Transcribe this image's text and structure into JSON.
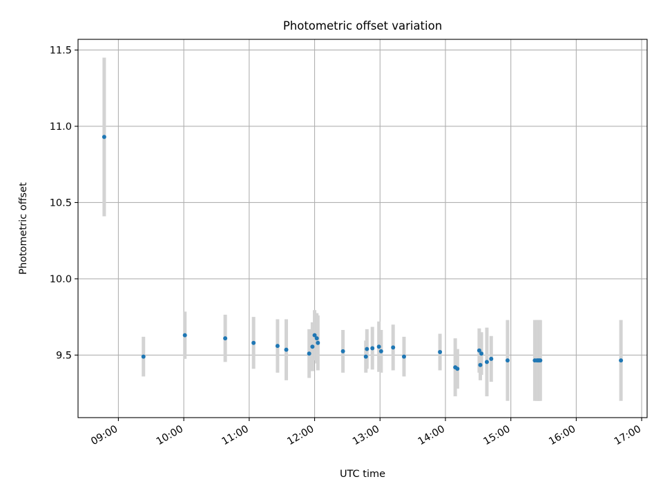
{
  "chart_data": {
    "type": "scatter",
    "title": "Photometric offset variation",
    "xlabel": "UTC time",
    "ylabel": "Photometric offset",
    "x_ticks": [
      "09:00",
      "10:00",
      "11:00",
      "12:00",
      "13:00",
      "14:00",
      "15:00",
      "16:00",
      "17:00"
    ],
    "x_tick_values": [
      540,
      600,
      660,
      720,
      780,
      840,
      900,
      960,
      1020
    ],
    "y_ticks": [
      "9.5",
      "10.0",
      "10.5",
      "11.0",
      "11.5"
    ],
    "y_tick_values": [
      9.5,
      10.0,
      10.5,
      11.0,
      11.5
    ],
    "xlim": [
      503,
      1025
    ],
    "ylim": [
      9.09,
      11.57
    ],
    "grid": true,
    "marker_color": "#1f77b4",
    "errorbar_color": "#d3d3d3",
    "points": [
      {
        "t": "08:47",
        "y": 10.93,
        "err": 0.52
      },
      {
        "t": "09:23",
        "y": 9.49,
        "err": 0.13
      },
      {
        "t": "10:01",
        "y": 9.63,
        "err": 0.155
      },
      {
        "t": "10:38",
        "y": 9.61,
        "err": 0.155
      },
      {
        "t": "11:04",
        "y": 9.58,
        "err": 0.17
      },
      {
        "t": "11:26",
        "y": 9.56,
        "err": 0.175
      },
      {
        "t": "11:34",
        "y": 9.535,
        "err": 0.2
      },
      {
        "t": "11:55",
        "y": 9.51,
        "err": 0.16
      },
      {
        "t": "11:58",
        "y": 9.555,
        "err": 0.16
      },
      {
        "t": "12:00",
        "y": 9.63,
        "err": 0.165
      },
      {
        "t": "12:02",
        "y": 9.61,
        "err": 0.165
      },
      {
        "t": "12:03",
        "y": 9.58,
        "err": 0.18
      },
      {
        "t": "12:26",
        "y": 9.525,
        "err": 0.14
      },
      {
        "t": "12:47",
        "y": 9.49,
        "err": 0.105
      },
      {
        "t": "12:48",
        "y": 9.54,
        "err": 0.13
      },
      {
        "t": "12:53",
        "y": 9.545,
        "err": 0.14
      },
      {
        "t": "12:59",
        "y": 9.555,
        "err": 0.165
      },
      {
        "t": "13:01",
        "y": 9.525,
        "err": 0.14
      },
      {
        "t": "13:12",
        "y": 9.55,
        "err": 0.15
      },
      {
        "t": "13:22",
        "y": 9.49,
        "err": 0.13
      },
      {
        "t": "13:55",
        "y": 9.52,
        "err": 0.12
      },
      {
        "t": "14:09",
        "y": 9.42,
        "err": 0.19
      },
      {
        "t": "14:11",
        "y": 9.41,
        "err": 0.13
      },
      {
        "t": "14:31",
        "y": 9.53,
        "err": 0.145
      },
      {
        "t": "14:32",
        "y": 9.435,
        "err": 0.1
      },
      {
        "t": "14:33",
        "y": 9.51,
        "err": 0.14
      },
      {
        "t": "14:38",
        "y": 9.455,
        "err": 0.225
      },
      {
        "t": "14:42",
        "y": 9.475,
        "err": 0.15
      },
      {
        "t": "14:57",
        "y": 9.465,
        "err": 0.265
      },
      {
        "t": "15:22",
        "y": 9.465,
        "err": 0.265
      },
      {
        "t": "15:24",
        "y": 9.465,
        "err": 0.265
      },
      {
        "t": "15:25",
        "y": 9.465,
        "err": 0.265
      },
      {
        "t": "15:26",
        "y": 9.465,
        "err": 0.265
      },
      {
        "t": "15:27",
        "y": 9.465,
        "err": 0.265
      },
      {
        "t": "16:41",
        "y": 9.465,
        "err": 0.265
      }
    ]
  }
}
